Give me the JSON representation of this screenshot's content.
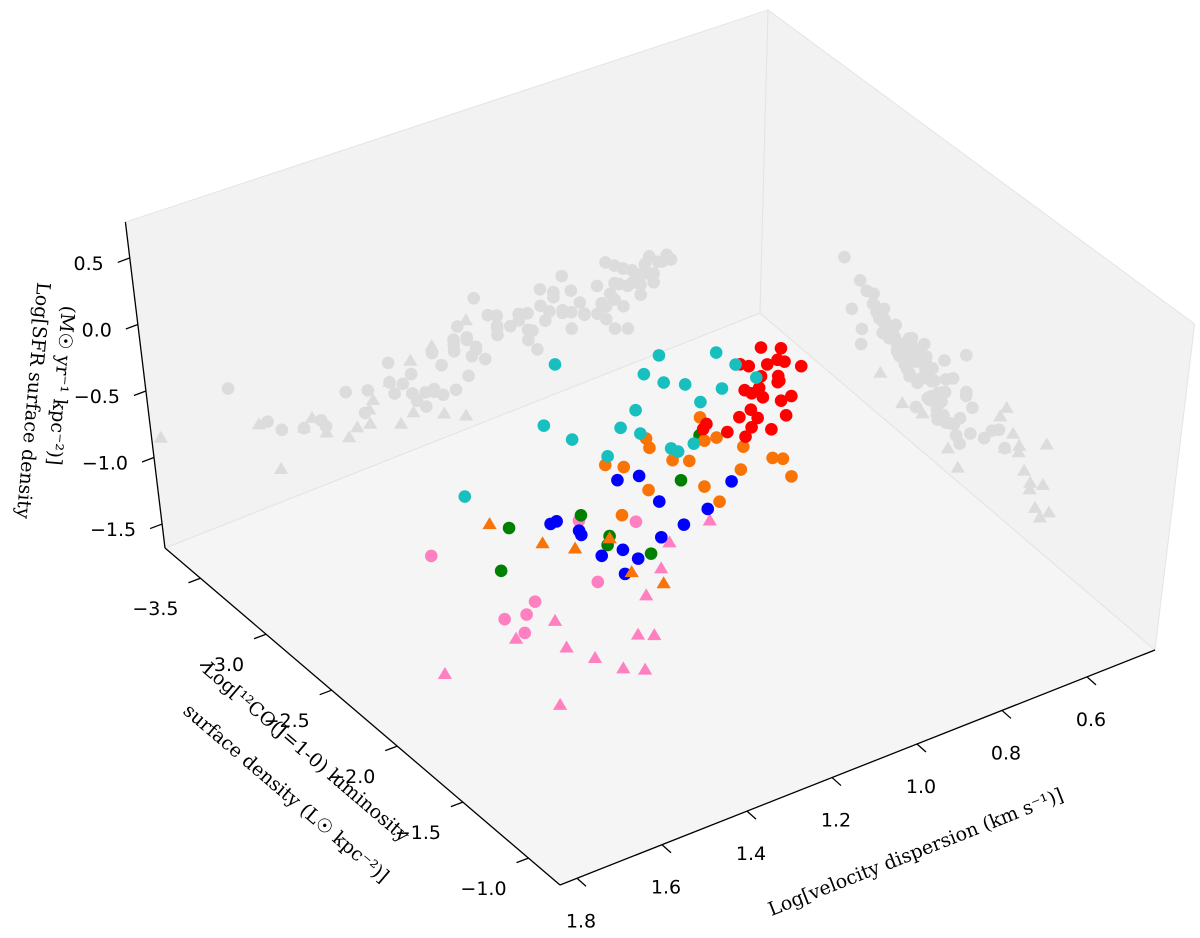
{
  "chart_data": {
    "type": "scatter3d",
    "x_label": "Log[velocity dispersion (km s⁻¹)]",
    "y_label": [
      "Log[¹²CO(J=1-0) luminosity",
      "surface density (L☉ kpc⁻²)]"
    ],
    "z_label": [
      "Log[SFR surface density",
      "(M☉ yr⁻¹ kpc⁻²)]"
    ],
    "xlim": [
      0.44,
      1.84
    ],
    "ylim": [
      -3.77,
      -0.76
    ],
    "zlim": [
      -1.68,
      0.77
    ],
    "xticks": [
      0.6,
      0.8,
      {
        "value": 1.0,
        "label": "1.0"
      },
      1.2,
      1.4,
      1.6,
      1.8
    ],
    "yticks": [
      {
        "value": -3.5,
        "label": "−3.5"
      },
      {
        "value": -3.0,
        "label": "−3.0"
      },
      {
        "value": -2.5,
        "label": "−2.5"
      },
      {
        "value": -2.0,
        "label": "−2.0"
      },
      {
        "value": -1.5,
        "label": "−1.5"
      },
      {
        "value": -1.0,
        "label": "−1.0"
      }
    ],
    "zticks": [
      0.5,
      {
        "value": 0,
        "label": "0.0"
      },
      {
        "value": -0.5,
        "label": "−0.5"
      },
      {
        "value": -1.0,
        "label": "−1.0"
      },
      {
        "value": -1.5,
        "label": "−1.5"
      }
    ],
    "grid": false,
    "shadow_color": "#dcdcdc",
    "series": [
      {
        "color": "#ff80c0",
        "marker": "triangle",
        "x": [
          1.82,
          1.56,
          1.34,
          1.12,
          1.4,
          1.45,
          1.5,
          1.38,
          1.3,
          1.25,
          1.6,
          1.48,
          1.2,
          1.35
        ],
        "y": [
          -1.66,
          -1.66,
          -1.66,
          -1.96,
          -1.7,
          -1.75,
          -1.8,
          -1.6,
          -1.85,
          -1.9,
          -1.85,
          -1.95,
          -2.0,
          -1.75
        ],
        "z": [
          -0.88,
          -1.44,
          -1.19,
          -0.85,
          -1.4,
          -1.3,
          -1.2,
          -1.35,
          -1.1,
          -1.0,
          -1.05,
          -1.15,
          -0.95,
          -1.25
        ]
      },
      {
        "color": "#ff80c0",
        "marker": "circle",
        "x": [
          1.66,
          1.5,
          1.58,
          1.55,
          1.3,
          1.2,
          1.45,
          1.35
        ],
        "y": [
          -2.27,
          -2.1,
          -2.0,
          -1.95,
          -2.35,
          -2.25,
          -2.2,
          -2.05
        ],
        "z": [
          -0.7,
          -1.2,
          -1.05,
          -1.15,
          -0.95,
          -1.0,
          -1.25,
          -1.1
        ]
      },
      {
        "color": "#008000",
        "marker": "circle",
        "x": [
          1.46,
          0.93,
          1.4,
          1.22,
          1.2,
          1.15,
          1.25,
          1.05
        ],
        "y": [
          -2.42,
          -2.65,
          -2.55,
          -2.4,
          -2.45,
          -2.3,
          -2.5,
          -2.4
        ],
        "z": [
          -1.19,
          -1.02,
          -1.05,
          -1.28,
          -1.28,
          -1.35,
          -1.1,
          -1.0
        ]
      },
      {
        "color": "#0000ff",
        "marker": "circle",
        "x": [
          1.14,
          1.29,
          1.22,
          0.98,
          1.2,
          1.25,
          1.18,
          1.1,
          1.15,
          1.27,
          1.05,
          1.12,
          1.24,
          1.3,
          1.08
        ],
        "y": [
          -2.42,
          -2.6,
          -2.27,
          -2.25,
          -2.35,
          -2.5,
          -2.3,
          -2.4,
          -2.55,
          -2.45,
          -2.2,
          -2.32,
          -2.38,
          -2.52,
          -2.28
        ],
        "z": [
          -0.87,
          -1.2,
          -1.39,
          -0.97,
          -1.3,
          -1.25,
          -1.35,
          -1.1,
          -1.0,
          -1.15,
          -1.05,
          -1.28,
          -1.32,
          -1.1,
          -1.2
        ]
      },
      {
        "color": "#f97306",
        "marker": "triangle",
        "x": [
          1.35,
          1.13,
          1.25,
          1.18,
          1.2,
          1.28
        ],
        "y": [
          -2.87,
          -2.27,
          -2.55,
          -2.35,
          -2.45,
          -2.7
        ],
        "z": [
          -1.36,
          -1.58,
          -1.4,
          -1.5,
          -1.3,
          -1.45
        ]
      },
      {
        "color": "#f97306",
        "marker": "circle",
        "x": [
          1.07,
          0.75,
          1.18,
          1.0,
          0.95,
          0.9,
          1.1,
          1.05,
          0.85,
          0.8,
          0.98,
          1.12,
          0.92,
          0.88,
          1.02,
          0.78,
          1.15,
          0.96
        ],
        "y": [
          -2.57,
          -2.6,
          -2.42,
          -2.5,
          -2.55,
          -2.62,
          -2.48,
          -2.66,
          -2.58,
          -2.52,
          -2.45,
          -2.6,
          -2.68,
          -2.5,
          -2.56,
          -2.44,
          -2.64,
          -2.4
        ],
        "z": [
          -0.87,
          -1.39,
          -1.12,
          -1.0,
          -0.95,
          -1.05,
          -1.08,
          -0.9,
          -1.15,
          -1.25,
          -1.18,
          -0.98,
          -0.92,
          -1.22,
          -1.02,
          -1.35,
          -0.96,
          -1.28
        ]
      },
      {
        "color": "#ff0000",
        "marker": "circle",
        "x": [
          0.7,
          0.72,
          0.68,
          0.75,
          0.78,
          0.66,
          0.8,
          0.73,
          0.71,
          0.69,
          0.76,
          0.82,
          0.74,
          0.67,
          0.79,
          0.85,
          0.7,
          0.77,
          0.72,
          0.88,
          0.65,
          0.74,
          0.81,
          0.69,
          0.76,
          0.9,
          0.71,
          0.78
        ],
        "y": [
          -2.8,
          -2.72,
          -2.88,
          -2.76,
          -2.7,
          -2.92,
          -2.68,
          -2.84,
          -2.78,
          -2.74,
          -2.9,
          -2.66,
          -2.82,
          -2.86,
          -2.72,
          -2.7,
          -2.94,
          -2.78,
          -2.68,
          -2.76,
          -2.8,
          -2.9,
          -2.74,
          -2.84,
          -2.66,
          -2.72,
          -2.86,
          -2.8
        ],
        "z": [
          -1.02,
          -1.08,
          -0.95,
          -1.05,
          -1.12,
          -0.92,
          -1.15,
          -0.98,
          -1.0,
          -1.1,
          -0.9,
          -1.18,
          -1.04,
          -0.96,
          -1.06,
          -1.14,
          -0.88,
          -1.01,
          -1.16,
          -1.09,
          -0.97,
          -0.94,
          -1.11,
          -1.03,
          -1.2,
          -1.07,
          -0.93,
          -0.99
        ]
      },
      {
        "color": "#17bfbf",
        "marker": "circle",
        "x": [
          1.36,
          1.1,
          0.78,
          1.12,
          1.11,
          0.86,
          0.95,
          0.9,
          0.92,
          1.0,
          1.05,
          1.02,
          0.98,
          0.97,
          0.94,
          0.88,
          0.82,
          0.76,
          0.8,
          1.15
        ],
        "y": [
          -3.02,
          -3.17,
          -2.87,
          -2.72,
          -3.02,
          -2.87,
          -3.0,
          -3.05,
          -2.95,
          -2.9,
          -2.85,
          -2.8,
          -2.7,
          -2.68,
          -2.66,
          -2.92,
          -2.84,
          -2.78,
          -2.95,
          -3.1
        ],
        "z": [
          -1.26,
          -0.7,
          -0.85,
          -1.0,
          -1.14,
          -1.04,
          -0.82,
          -0.78,
          -0.88,
          -0.95,
          -0.98,
          -1.02,
          -1.1,
          -1.12,
          -1.08,
          -0.92,
          -0.96,
          -0.9,
          -0.8,
          -1.05
        ]
      }
    ]
  }
}
